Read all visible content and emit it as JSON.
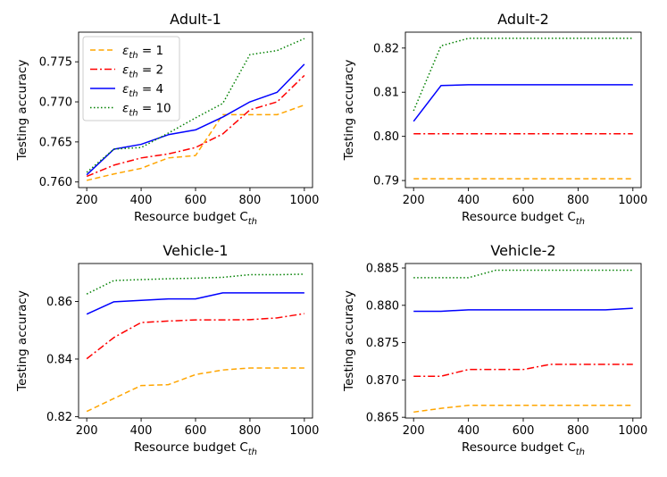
{
  "colors": {
    "eps1": "#ffa500",
    "eps2": "#ff0000",
    "eps4": "#0000ff",
    "eps10": "#008000"
  },
  "legend": {
    "placement": "top-left",
    "panel": "Adult-1",
    "entries": [
      {
        "base": "ε",
        "sub": "th",
        "suffix": " = 1",
        "color": "#ffa500",
        "dash": "dashed"
      },
      {
        "base": "ε",
        "sub": "th",
        "suffix": " = 2",
        "color": "#ff0000",
        "dash": "dashdot"
      },
      {
        "base": "ε",
        "sub": "th",
        "suffix": " = 4",
        "color": "#0000ff",
        "dash": "solid"
      },
      {
        "base": "ε",
        "sub": "th",
        "suffix": " = 10",
        "color": "#008000",
        "dash": "dotted"
      }
    ]
  },
  "chart_data": [
    {
      "type": "line",
      "title": "Adult-1",
      "xlabel": {
        "base": "Resource budget C",
        "sub": "th"
      },
      "ylabel": "Testing accuracy",
      "x": [
        200,
        300,
        400,
        500,
        600,
        700,
        800,
        900,
        1000
      ],
      "xlim": [
        170,
        1030
      ],
      "ylim": [
        0.7593,
        0.7787
      ],
      "xticks": [
        "200",
        "400",
        "600",
        "800",
        "1000"
      ],
      "xtick_values": [
        200,
        400,
        600,
        800,
        1000
      ],
      "yticks": [
        "0.760",
        "0.765",
        "0.770",
        "0.775"
      ],
      "ytick_values": [
        0.76,
        0.765,
        0.77,
        0.775
      ],
      "series": [
        {
          "name": "eps_th = 1",
          "color": "#ffa500",
          "dash": "dashed",
          "values": [
            0.7602,
            0.761,
            0.7617,
            0.763,
            0.7633,
            0.7684,
            0.7684,
            0.7684,
            0.7696
          ]
        },
        {
          "name": "eps_th = 2",
          "color": "#ff0000",
          "dash": "dashdot",
          "values": [
            0.7607,
            0.7621,
            0.763,
            0.7635,
            0.7643,
            0.766,
            0.769,
            0.77,
            0.7733
          ]
        },
        {
          "name": "eps_th = 4",
          "color": "#0000ff",
          "dash": "solid",
          "values": [
            0.7609,
            0.7641,
            0.7647,
            0.7659,
            0.7665,
            0.7681,
            0.77,
            0.7712,
            0.7747
          ]
        },
        {
          "name": "eps_th = 10",
          "color": "#008000",
          "dash": "dotted",
          "values": [
            0.7612,
            0.7641,
            0.7643,
            0.7661,
            0.768,
            0.7698,
            0.7759,
            0.7764,
            0.7779
          ]
        }
      ]
    },
    {
      "type": "line",
      "title": "Adult-2",
      "xlabel": {
        "base": "Resource budget C",
        "sub": "th"
      },
      "ylabel": "Testing accuracy",
      "x": [
        200,
        300,
        400,
        500,
        600,
        700,
        800,
        900,
        1000
      ],
      "xlim": [
        170,
        1030
      ],
      "ylim": [
        0.7884,
        0.8236
      ],
      "xticks": [
        "200",
        "400",
        "600",
        "800",
        "1000"
      ],
      "xtick_values": [
        200,
        400,
        600,
        800,
        1000
      ],
      "yticks": [
        "0.79",
        "0.80",
        "0.81",
        "0.82"
      ],
      "ytick_values": [
        0.79,
        0.8,
        0.81,
        0.82
      ],
      "series": [
        {
          "name": "eps_th = 1",
          "color": "#ffa500",
          "dash": "dashed",
          "values": [
            0.7904,
            0.7904,
            0.7904,
            0.7904,
            0.7904,
            0.7904,
            0.7904,
            0.7904,
            0.7904
          ]
        },
        {
          "name": "eps_th = 2",
          "color": "#ff0000",
          "dash": "dashdot",
          "values": [
            0.8006,
            0.8006,
            0.8006,
            0.8006,
            0.8006,
            0.8006,
            0.8006,
            0.8006,
            0.8006
          ]
        },
        {
          "name": "eps_th = 4",
          "color": "#0000ff",
          "dash": "solid",
          "values": [
            0.8034,
            0.8115,
            0.8117,
            0.8117,
            0.8117,
            0.8117,
            0.8117,
            0.8117,
            0.8117
          ]
        },
        {
          "name": "eps_th = 10",
          "color": "#008000",
          "dash": "dotted",
          "values": [
            0.8058,
            0.8205,
            0.8222,
            0.8222,
            0.8222,
            0.8222,
            0.8222,
            0.8222,
            0.8222
          ]
        }
      ]
    },
    {
      "type": "line",
      "title": "Vehicle-1",
      "xlabel": {
        "base": "Resource budget C",
        "sub": "th"
      },
      "ylabel": "Testing accuracy",
      "x": [
        200,
        300,
        400,
        500,
        600,
        700,
        800,
        900,
        1000
      ],
      "xlim": [
        170,
        1030
      ],
      "ylim": [
        0.8195,
        0.8732
      ],
      "xticks": [
        "200",
        "400",
        "600",
        "800",
        "1000"
      ],
      "xtick_values": [
        200,
        400,
        600,
        800,
        1000
      ],
      "yticks": [
        "0.82",
        "0.84",
        "0.86"
      ],
      "ytick_values": [
        0.82,
        0.84,
        0.86
      ],
      "series": [
        {
          "name": "eps_th = 1",
          "color": "#ffa500",
          "dash": "dashed",
          "values": [
            0.8218,
            0.8263,
            0.8308,
            0.8311,
            0.8346,
            0.8362,
            0.8369,
            0.8369,
            0.8369
          ]
        },
        {
          "name": "eps_th = 2",
          "color": "#ff0000",
          "dash": "dashdot",
          "values": [
            0.8401,
            0.8475,
            0.8527,
            0.8532,
            0.8536,
            0.8536,
            0.8537,
            0.8543,
            0.8558
          ]
        },
        {
          "name": "eps_th = 4",
          "color": "#0000ff",
          "dash": "solid",
          "values": [
            0.8556,
            0.8599,
            0.8604,
            0.8609,
            0.8609,
            0.863,
            0.863,
            0.863,
            0.863
          ]
        },
        {
          "name": "eps_th = 10",
          "color": "#008000",
          "dash": "dotted",
          "values": [
            0.8626,
            0.8673,
            0.8676,
            0.8679,
            0.8681,
            0.8684,
            0.8693,
            0.8693,
            0.8695
          ]
        }
      ]
    },
    {
      "type": "line",
      "title": "Vehicle-2",
      "xlabel": {
        "base": "Resource budget C",
        "sub": "th"
      },
      "ylabel": "Testing accuracy",
      "x": [
        200,
        300,
        400,
        500,
        600,
        700,
        800,
        900,
        1000
      ],
      "xlim": [
        170,
        1030
      ],
      "ylim": [
        0.8649,
        0.8856
      ],
      "xticks": [
        "200",
        "400",
        "600",
        "800",
        "1000"
      ],
      "xtick_values": [
        200,
        400,
        600,
        800,
        1000
      ],
      "yticks": [
        "0.865",
        "0.870",
        "0.875",
        "0.880",
        "0.885"
      ],
      "ytick_values": [
        0.865,
        0.87,
        0.875,
        0.88,
        0.885
      ],
      "series": [
        {
          "name": "eps_th = 1",
          "color": "#ffa500",
          "dash": "dashed",
          "values": [
            0.8657,
            0.8662,
            0.8666,
            0.8666,
            0.8666,
            0.8666,
            0.8666,
            0.8666,
            0.8666
          ]
        },
        {
          "name": "eps_th = 2",
          "color": "#ff0000",
          "dash": "dashdot",
          "values": [
            0.8705,
            0.8705,
            0.8714,
            0.8714,
            0.8714,
            0.8721,
            0.8721,
            0.8721,
            0.8721
          ]
        },
        {
          "name": "eps_th = 4",
          "color": "#0000ff",
          "dash": "solid",
          "values": [
            0.8792,
            0.8792,
            0.8794,
            0.8794,
            0.8794,
            0.8794,
            0.8794,
            0.8794,
            0.8796
          ]
        },
        {
          "name": "eps_th = 10",
          "color": "#008000",
          "dash": "dotted",
          "values": [
            0.8837,
            0.8837,
            0.8837,
            0.8847,
            0.8847,
            0.8847,
            0.8847,
            0.8847,
            0.8847
          ]
        }
      ]
    }
  ]
}
